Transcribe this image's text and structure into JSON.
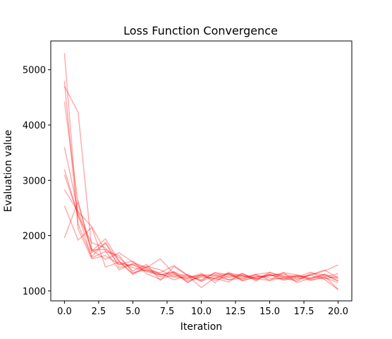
{
  "chart_data": {
    "type": "line",
    "title": "Loss Function Convergence",
    "xlabel": "Iteration",
    "ylabel": "Evaluation value",
    "xlim": [
      -1.0,
      21.0
    ],
    "ylim": [
      820,
      5520
    ],
    "x_ticks": [
      0,
      2.5,
      5,
      7.5,
      10,
      12.5,
      15,
      17.5,
      20
    ],
    "x_tick_labels": [
      "0.0",
      "2.5",
      "5.0",
      "7.5",
      "10.0",
      "12.5",
      "15.0",
      "17.5",
      "20.0"
    ],
    "y_ticks": [
      1000,
      2000,
      3000,
      4000,
      5000
    ],
    "y_tick_labels": [
      "1000",
      "2000",
      "3000",
      "4000",
      "5000"
    ],
    "grid": false,
    "legend": "none",
    "line_color": "#ff0000",
    "line_opacity": 0.32,
    "x": [
      0,
      1,
      2,
      3,
      4,
      5,
      6,
      7,
      8,
      9,
      10,
      11,
      12,
      13,
      14,
      15,
      16,
      17,
      18,
      19,
      20
    ],
    "series": [
      {
        "values": [
          5300,
          2200,
          1620,
          1880,
          1420,
          1480,
          1380,
          1330,
          1460,
          1280,
          1200,
          1330,
          1240,
          1310,
          1220,
          1300,
          1210,
          1280,
          1230,
          1270,
          1030
        ]
      },
      {
        "values": [
          4700,
          4230,
          1740,
          1570,
          1690,
          1520,
          1420,
          1580,
          1310,
          1220,
          1290,
          1190,
          1270,
          1250,
          1300,
          1330,
          1270,
          1220,
          1290,
          1360,
          1470
        ]
      },
      {
        "values": [
          4420,
          2580,
          1720,
          1940,
          1540,
          1300,
          1430,
          1300,
          1250,
          1230,
          1320,
          1150,
          1340,
          1180,
          1250,
          1300,
          1190,
          1250,
          1340,
          1220,
          1260
        ]
      },
      {
        "values": [
          4800,
          2120,
          1580,
          1640,
          1480,
          1470,
          1350,
          1290,
          1350,
          1160,
          1270,
          1300,
          1200,
          1290,
          1230,
          1280,
          1300,
          1250,
          1190,
          1250,
          1310
        ]
      },
      {
        "values": [
          3600,
          2440,
          1740,
          1750,
          1600,
          1360,
          1480,
          1190,
          1440,
          1280,
          1180,
          1330,
          1300,
          1210,
          1300,
          1190,
          1240,
          1260,
          1280,
          1210,
          1020
        ]
      },
      {
        "values": [
          3200,
          2350,
          1870,
          1780,
          1480,
          1540,
          1310,
          1210,
          1300,
          1190,
          1250,
          1230,
          1160,
          1320,
          1180,
          1340,
          1250,
          1170,
          1320,
          1290,
          1180
        ]
      },
      {
        "values": [
          3100,
          2380,
          1600,
          1710,
          1640,
          1330,
          1380,
          1310,
          1200,
          1280,
          1060,
          1240,
          1300,
          1270,
          1220,
          1190,
          1330,
          1290,
          1200,
          1240,
          1150
        ]
      },
      {
        "values": [
          2830,
          2430,
          2160,
          1720,
          1380,
          1500,
          1410,
          1250,
          1330,
          1150,
          1300,
          1270,
          1200,
          1230,
          1280,
          1230,
          1220,
          1200,
          1290,
          1380,
          1230
        ]
      },
      {
        "values": [
          2540,
          1920,
          2150,
          1430,
          1520,
          1310,
          1450,
          1380,
          1260,
          1300,
          1170,
          1280,
          1310,
          1190,
          1260,
          1270,
          1330,
          1150,
          1230,
          1300,
          1180
        ]
      },
      {
        "values": [
          1960,
          2620,
          1690,
          1860,
          1530,
          1420,
          1360,
          1290,
          1340,
          1250,
          1280,
          1220,
          1320,
          1280,
          1200,
          1290,
          1250,
          1280,
          1220,
          1300,
          1220
        ]
      }
    ]
  }
}
